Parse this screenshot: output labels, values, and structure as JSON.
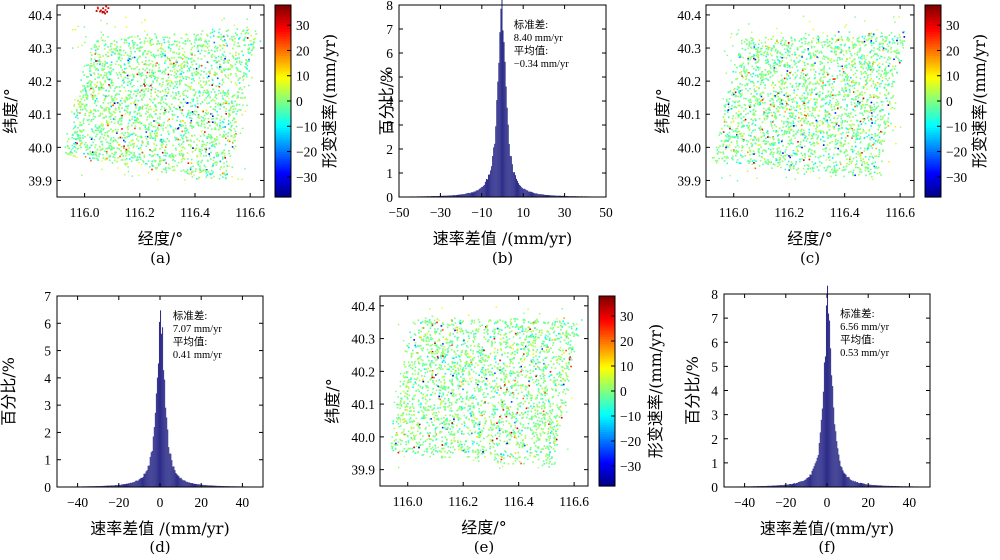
{
  "figure": {
    "colorbar": {
      "label": "形变速率/(mm/yr)",
      "range": [
        -38,
        38
      ],
      "ticks": [
        -30,
        -20,
        -10,
        0,
        10,
        20,
        30
      ],
      "colormap": "jet"
    }
  },
  "chart_data": [
    {
      "id": "a",
      "type": "scatter",
      "caption": "(a)",
      "xlabel": "经度/°",
      "ylabel": "纬度/°",
      "xlim": [
        115.9,
        116.65
      ],
      "ylim": [
        39.85,
        40.43
      ],
      "xticks": [
        "116.0",
        "116.2",
        "116.4",
        "116.6"
      ],
      "yticks": [
        "39.9",
        "40.0",
        "40.1",
        "40.2",
        "40.3",
        "40.4"
      ],
      "point_color": "velocity (colormap jet, -38 to 38 mm/yr)",
      "dominant_value_range": [
        -5,
        5
      ],
      "colorbar": true,
      "grid": false
    },
    {
      "id": "b",
      "type": "bar",
      "caption": "(b)",
      "xlabel": "速率差值 /(mm/yr)",
      "ylabel": "百分比/%",
      "xlim": [
        -50,
        50
      ],
      "ylim": [
        0,
        8
      ],
      "xticks": [
        "−50",
        "−30",
        "−10",
        "10",
        "30",
        "50"
      ],
      "yticks": [
        "0",
        "1",
        "2",
        "3",
        "4",
        "5",
        "6",
        "7",
        "8"
      ],
      "annotations": [
        "标准差:",
        "8.40 mm/yr",
        "平均值:",
        "−0.34 mm/yr"
      ],
      "stats": {
        "std": 8.4,
        "mean": -0.34,
        "peak_percent": 7.8
      },
      "bar_color": "#2e2e8a",
      "grid": false
    },
    {
      "id": "c",
      "type": "scatter",
      "caption": "(c)",
      "xlabel": "经度/°",
      "ylabel": "纬度/°",
      "xlim": [
        115.9,
        116.65
      ],
      "ylim": [
        39.85,
        40.43
      ],
      "xticks": [
        "116.0",
        "116.2",
        "116.4",
        "116.6"
      ],
      "yticks": [
        "39.9",
        "40.0",
        "40.1",
        "40.2",
        "40.3",
        "40.4"
      ],
      "point_color": "velocity (colormap jet, -38 to 38 mm/yr)",
      "dominant_value_range": [
        -5,
        5
      ],
      "colorbar": true,
      "grid": false
    },
    {
      "id": "d",
      "type": "bar",
      "caption": "(d)",
      "xlabel": "速率差值 /(mm/yr)",
      "ylabel": "百分比/%",
      "xlim": [
        -50,
        50
      ],
      "ylim": [
        0,
        7
      ],
      "xticks": [
        "−40",
        "−20",
        "0",
        "20",
        "40"
      ],
      "yticks": [
        "0",
        "1",
        "2",
        "3",
        "4",
        "5",
        "6",
        "7"
      ],
      "annotations": [
        "标准差:",
        "7.07 mm/yr",
        "平均值:",
        "0.41 mm/yr"
      ],
      "stats": {
        "std": 7.07,
        "mean": 0.41,
        "peak_percent": 6.1
      },
      "bar_color": "#2e2e8a",
      "grid": false
    },
    {
      "id": "e",
      "type": "scatter",
      "caption": "(e)",
      "xlabel": "经度/°",
      "ylabel": "纬度/°",
      "xlim": [
        115.9,
        116.65
      ],
      "ylim": [
        39.85,
        40.43
      ],
      "xticks": [
        "116.0",
        "116.2",
        "116.4",
        "116.6"
      ],
      "yticks": [
        "39.9",
        "40.0",
        "40.1",
        "40.2",
        "40.3",
        "40.4"
      ],
      "point_color": "velocity (colormap jet, -38 to 38 mm/yr)",
      "dominant_value_range": [
        -5,
        5
      ],
      "colorbar": true,
      "grid": false
    },
    {
      "id": "f",
      "type": "bar",
      "caption": "(f)",
      "xlabel": "速率差值/(mm/yr)",
      "ylabel": "百分比/%",
      "xlim": [
        -50,
        50
      ],
      "ylim": [
        0,
        8
      ],
      "xticks": [
        "−40",
        "−20",
        "0",
        "20",
        "40"
      ],
      "yticks": [
        "0",
        "1",
        "2",
        "3",
        "4",
        "5",
        "6",
        "7",
        "8"
      ],
      "annotations": [
        "标准差:",
        "6.56 mm/yr",
        "平均值:",
        "0.53 mm/yr"
      ],
      "stats": {
        "std": 6.56,
        "mean": 0.53,
        "peak_percent": 7.7
      },
      "bar_color": "#2e2e8a",
      "grid": false
    }
  ]
}
